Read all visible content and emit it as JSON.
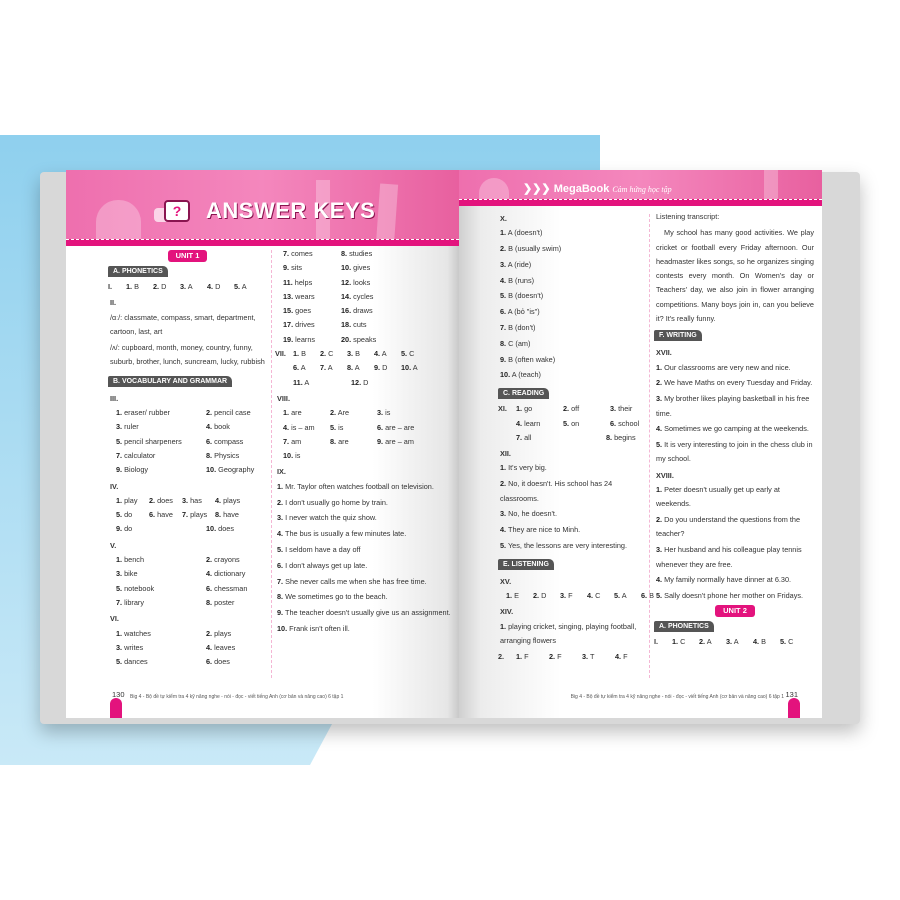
{
  "colors": {
    "accent": "#e3137d",
    "banner": "#f487bd",
    "badge": "#555555",
    "background_blue": "#8fd0ee"
  },
  "left_page": {
    "title": "ANSWER KEYS",
    "title_icon": "question-speech-bubble-icon",
    "page_number": "130",
    "footer": "Big 4 - Bộ đề tự kiểm tra 4 kỹ năng nghe - nói - đọc - viết tiếng Anh (cơ bản và nâng cao) 6 tập 1",
    "columns": [
      [
        {
          "type": "unit",
          "text": "UNIT 1"
        },
        {
          "type": "badge",
          "text": "A. PHONETICS"
        },
        {
          "type": "row",
          "lead": "I.",
          "cells": [
            [
              "1.",
              "B"
            ],
            [
              "2.",
              "D"
            ],
            [
              "3.",
              "A"
            ],
            [
              "4.",
              "D"
            ],
            [
              "5.",
              "A"
            ]
          ]
        },
        {
          "type": "roman",
          "text": "II."
        },
        {
          "type": "text",
          "text": "/ɑː/: classmate, compass, smart, department, cartoon, last, art"
        },
        {
          "type": "text",
          "text": "/ʌ/: cupboard, month, money, country, funny, suburb, brother, lunch, suncream, lucky, rubbish"
        },
        {
          "type": "badge",
          "text": "B. VOCABULARY AND GRAMMAR"
        },
        {
          "type": "roman",
          "text": "III."
        },
        {
          "type": "row",
          "cells": [
            [
              "1.",
              "eraser/ rubber"
            ],
            [
              "2.",
              "pencil case"
            ]
          ]
        },
        {
          "type": "row",
          "cells": [
            [
              "3.",
              "ruler"
            ],
            [
              "4.",
              "book"
            ]
          ]
        },
        {
          "type": "row",
          "cells": [
            [
              "5.",
              "pencil sharpeners"
            ],
            [
              "6.",
              "compass"
            ]
          ]
        },
        {
          "type": "row",
          "cells": [
            [
              "7.",
              "calculator"
            ],
            [
              "8.",
              "Physics"
            ]
          ]
        },
        {
          "type": "row",
          "cells": [
            [
              "9.",
              "Biology"
            ],
            [
              "10.",
              "Geography"
            ]
          ]
        },
        {
          "type": "roman",
          "text": "IV."
        },
        {
          "type": "row",
          "cells": [
            [
              "1.",
              "play"
            ],
            [
              "2.",
              "does"
            ],
            [
              "3.",
              "has"
            ],
            [
              "4.",
              "plays"
            ]
          ]
        },
        {
          "type": "row",
          "cells": [
            [
              "5.",
              "do"
            ],
            [
              "6.",
              "have"
            ],
            [
              "7.",
              "plays"
            ],
            [
              "8.",
              "have"
            ]
          ]
        },
        {
          "type": "row",
          "cells": [
            [
              "9.",
              "do"
            ],
            [
              "10.",
              "does"
            ]
          ]
        },
        {
          "type": "roman",
          "text": "V."
        },
        {
          "type": "row",
          "cells": [
            [
              "1.",
              "bench"
            ],
            [
              "2.",
              "crayons"
            ]
          ]
        },
        {
          "type": "row",
          "cells": [
            [
              "3.",
              "bike"
            ],
            [
              "4.",
              "dictionary"
            ]
          ]
        },
        {
          "type": "row",
          "cells": [
            [
              "5.",
              "notebook"
            ],
            [
              "6.",
              "chessman"
            ]
          ]
        },
        {
          "type": "row",
          "cells": [
            [
              "7.",
              "library"
            ],
            [
              "8.",
              "poster"
            ]
          ]
        },
        {
          "type": "roman",
          "text": "VI."
        },
        {
          "type": "row",
          "cells": [
            [
              "1.",
              "watches"
            ],
            [
              "2.",
              "plays"
            ]
          ]
        },
        {
          "type": "row",
          "cells": [
            [
              "3.",
              "writes"
            ],
            [
              "4.",
              "leaves"
            ]
          ]
        },
        {
          "type": "row",
          "cells": [
            [
              "5.",
              "dances"
            ],
            [
              "6.",
              "does"
            ]
          ]
        }
      ],
      [
        {
          "type": "row",
          "cells": [
            [
              "7.",
              "comes"
            ],
            [
              "8.",
              "studies"
            ]
          ]
        },
        {
          "type": "row",
          "cells": [
            [
              "9.",
              "sits"
            ],
            [
              "10.",
              "gives"
            ]
          ]
        },
        {
          "type": "row",
          "cells": [
            [
              "11.",
              "helps"
            ],
            [
              "12.",
              "looks"
            ]
          ]
        },
        {
          "type": "row",
          "cells": [
            [
              "13.",
              "wears"
            ],
            [
              "14.",
              "cycles"
            ]
          ]
        },
        {
          "type": "row",
          "cells": [
            [
              "15.",
              "goes"
            ],
            [
              "16.",
              "draws"
            ]
          ]
        },
        {
          "type": "row",
          "cells": [
            [
              "17.",
              "drives"
            ],
            [
              "18.",
              "cuts"
            ]
          ]
        },
        {
          "type": "row",
          "cells": [
            [
              "19.",
              "learns"
            ],
            [
              "20.",
              "speaks"
            ]
          ]
        },
        {
          "type": "row",
          "lead": "VII.",
          "cells": [
            [
              "1.",
              "B"
            ],
            [
              "2.",
              "C"
            ],
            [
              "3.",
              "B"
            ],
            [
              "4.",
              "A"
            ],
            [
              "5.",
              "C"
            ]
          ]
        },
        {
          "type": "row",
          "lead": " ",
          "cells": [
            [
              "6.",
              "A"
            ],
            [
              "7.",
              "A"
            ],
            [
              "8.",
              "A"
            ],
            [
              "9.",
              "D"
            ],
            [
              "10.",
              "A"
            ]
          ]
        },
        {
          "type": "row",
          "lead": " ",
          "cells": [
            [
              "11.",
              "A"
            ],
            [
              "12.",
              "D"
            ]
          ]
        },
        {
          "type": "roman",
          "text": "VIII."
        },
        {
          "type": "row",
          "cells": [
            [
              "1.",
              "are"
            ],
            [
              "2.",
              "Are"
            ],
            [
              "3.",
              "is"
            ]
          ]
        },
        {
          "type": "row",
          "cells": [
            [
              "4.",
              "is – am"
            ],
            [
              "5.",
              "is"
            ],
            [
              "6.",
              "are – are"
            ]
          ]
        },
        {
          "type": "row",
          "cells": [
            [
              "7.",
              "am"
            ],
            [
              "8.",
              "are"
            ],
            [
              "9.",
              "are – am"
            ]
          ]
        },
        {
          "type": "row",
          "cells": [
            [
              "10.",
              "is"
            ]
          ]
        },
        {
          "type": "roman",
          "text": "IX."
        },
        {
          "type": "sent",
          "n": "1.",
          "text": "Mr. Taylor often watches football on television."
        },
        {
          "type": "sent",
          "n": "2.",
          "text": "I don't usually go home by train."
        },
        {
          "type": "sent",
          "n": "3.",
          "text": "I never watch the quiz show."
        },
        {
          "type": "sent",
          "n": "4.",
          "text": "The bus is usually a few minutes late."
        },
        {
          "type": "sent",
          "n": "5.",
          "text": "I seldom have a day off"
        },
        {
          "type": "sent",
          "n": "6.",
          "text": "I don't always get up late."
        },
        {
          "type": "sent",
          "n": "7.",
          "text": "She never calls me when she has free time."
        },
        {
          "type": "sent",
          "n": "8.",
          "text": "We sometimes go to the beach."
        },
        {
          "type": "sent",
          "n": "9.",
          "text": "The teacher doesn't usually give us an assignment."
        },
        {
          "type": "sent",
          "n": "10.",
          "text": "Frank isn't often ill."
        }
      ]
    ]
  },
  "right_page": {
    "brand": "MegaBook",
    "tagline": "Cảm hứng học tập",
    "page_number": "131",
    "footer": "Big 4 - Bộ đề tự kiểm tra 4 kỹ năng nghe - nói - đọc - viết tiếng Anh (cơ bản và nâng cao) 6 tập 1",
    "columns": [
      [
        {
          "type": "roman",
          "text": "X."
        },
        {
          "type": "sent",
          "n": "1.",
          "text": "A (doesn't)"
        },
        {
          "type": "sent",
          "n": "2.",
          "text": "B (usually swim)"
        },
        {
          "type": "sent",
          "n": "3.",
          "text": "A (ride)"
        },
        {
          "type": "sent",
          "n": "4.",
          "text": "B (runs)"
        },
        {
          "type": "sent",
          "n": "5.",
          "text": "B (doesn't)"
        },
        {
          "type": "sent",
          "n": "6.",
          "text": "A (bỏ \"is\")"
        },
        {
          "type": "sent",
          "n": "7.",
          "text": "B (don't)"
        },
        {
          "type": "sent",
          "n": "8.",
          "text": "C (am)"
        },
        {
          "type": "sent",
          "n": "9.",
          "text": "B (often wake)"
        },
        {
          "type": "sent",
          "n": "10.",
          "text": "A (teach)"
        },
        {
          "type": "badge",
          "text": "C. READING"
        },
        {
          "type": "row",
          "lead": "XI.",
          "cells": [
            [
              "1.",
              "go"
            ],
            [
              "2.",
              "off"
            ],
            [
              "3.",
              "their"
            ]
          ]
        },
        {
          "type": "row",
          "lead": " ",
          "cells": [
            [
              "4.",
              "learn"
            ],
            [
              "5.",
              "on"
            ],
            [
              "6.",
              "school"
            ]
          ]
        },
        {
          "type": "row",
          "lead": " ",
          "cells": [
            [
              "7.",
              "all"
            ],
            [
              "8.",
              "begins"
            ]
          ]
        },
        {
          "type": "roman",
          "text": "XII."
        },
        {
          "type": "sent",
          "n": "1.",
          "text": "It's very big."
        },
        {
          "type": "sent",
          "n": "2.",
          "text": "No, it doesn't. His school has 24 classrooms."
        },
        {
          "type": "sent",
          "n": "3.",
          "text": "No, he doesn't."
        },
        {
          "type": "sent",
          "n": "4.",
          "text": "They are nice to Minh."
        },
        {
          "type": "sent",
          "n": "5.",
          "text": "Yes, the lessons are very interesting."
        },
        {
          "type": "badge",
          "text": "E. LISTENING"
        },
        {
          "type": "roman",
          "text": "XV."
        },
        {
          "type": "row",
          "cells": [
            [
              "1.",
              "E"
            ],
            [
              "2.",
              "D"
            ],
            [
              "3.",
              "F"
            ],
            [
              "4.",
              "C"
            ],
            [
              "5.",
              "A"
            ],
            [
              "6.",
              "B"
            ]
          ]
        },
        {
          "type": "roman",
          "text": "XIV."
        },
        {
          "type": "sent",
          "n": "1.",
          "text": "playing cricket, singing, playing football, arranging flowers"
        },
        {
          "type": "row",
          "lead": "2.",
          "cells": [
            [
              "1.",
              "F"
            ],
            [
              "2.",
              "F"
            ],
            [
              "3.",
              "T"
            ],
            [
              "4.",
              "F"
            ]
          ]
        }
      ],
      [
        {
          "type": "text",
          "text": "Listening transcript:"
        },
        {
          "type": "para",
          "text": "My school has many good activities. We play cricket or football every Friday afternoon. Our headmaster likes songs, so he organizes singing contests every month. On Women's day or Teachers' day, we also join in flower arranging competitions. Many boys join in, can you believe it? It's really funny."
        },
        {
          "type": "badge",
          "text": "F. WRITING"
        },
        {
          "type": "roman",
          "text": "XVII."
        },
        {
          "type": "sent",
          "n": "1.",
          "text": "Our classrooms are very new and nice."
        },
        {
          "type": "sent",
          "n": "2.",
          "text": "We have Maths on every Tuesday and Friday."
        },
        {
          "type": "sent",
          "n": "3.",
          "text": "My brother likes playing basketball in his free time."
        },
        {
          "type": "sent",
          "n": "4.",
          "text": "Sometimes we go camping at the weekends."
        },
        {
          "type": "sent",
          "n": "5.",
          "text": "It is very interesting to join in the chess club in my school."
        },
        {
          "type": "roman",
          "text": "XVIII."
        },
        {
          "type": "sent",
          "n": "1.",
          "text": "Peter doesn't usually get up early at weekends."
        },
        {
          "type": "sent",
          "n": "2.",
          "text": "Do you understand the questions from the teacher?"
        },
        {
          "type": "sent",
          "n": "3.",
          "text": "Her husband and his colleague play tennis whenever they are free."
        },
        {
          "type": "sent",
          "n": "4.",
          "text": "My family normally have dinner at 6.30."
        },
        {
          "type": "sent",
          "n": "5.",
          "text": "Sally doesn't phone her mother on Fridays."
        },
        {
          "type": "unit",
          "text": "UNIT 2"
        },
        {
          "type": "badge",
          "text": "A. PHONETICS"
        },
        {
          "type": "row",
          "lead": "I.",
          "cells": [
            [
              "1.",
              "C"
            ],
            [
              "2.",
              "A"
            ],
            [
              "3.",
              "A"
            ],
            [
              "4.",
              "B"
            ],
            [
              "5.",
              "C"
            ]
          ]
        }
      ]
    ]
  }
}
